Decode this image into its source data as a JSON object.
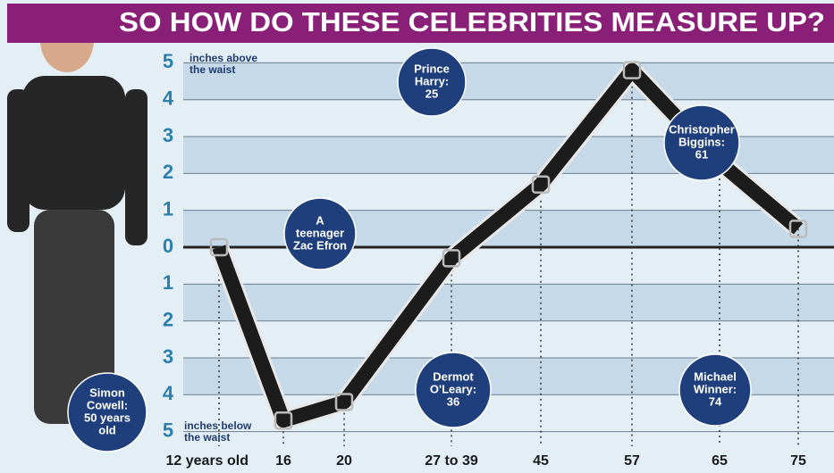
{
  "chart_data": {
    "type": "line",
    "title": "SO HOW DO THESE CELEBRITIES MEASURE UP?",
    "y_note_top": [
      "inches above",
      "the waist"
    ],
    "y_note_bottom": [
      "inches below",
      "the waist"
    ],
    "categories": [
      "12 years old",
      "16",
      "20",
      "27 to 39",
      "45",
      "57",
      "65",
      "75"
    ],
    "values": [
      0,
      -4.7,
      -4.2,
      -0.3,
      1.7,
      4.8,
      2.3,
      0.5
    ],
    "color": "#1c1c1c",
    "ylim": [
      -5.3,
      5.3
    ],
    "yticks": [
      5,
      4,
      3,
      2,
      1,
      0,
      {
        "value": -1,
        "label": "1"
      },
      {
        "value": -2,
        "label": "2"
      },
      {
        "value": -3,
        "label": "3"
      },
      {
        "value": -4,
        "label": "4"
      },
      {
        "value": -5,
        "label": "5"
      }
    ],
    "grid": true,
    "annotations": [
      {
        "lines": [
          "Simon",
          "Cowell:",
          "50 years",
          "old"
        ]
      },
      {
        "lines": [
          "A",
          "teenager",
          "Zac Efron"
        ]
      },
      {
        "lines": [
          "Prince",
          "Harry:",
          "25"
        ]
      },
      {
        "lines": [
          "Dermot",
          "O'Leary:",
          "36"
        ]
      },
      {
        "lines": [
          "Christopher",
          "Biggins:",
          "61"
        ]
      },
      {
        "lines": [
          "Michael",
          "Winner:",
          "74"
        ]
      }
    ]
  }
}
